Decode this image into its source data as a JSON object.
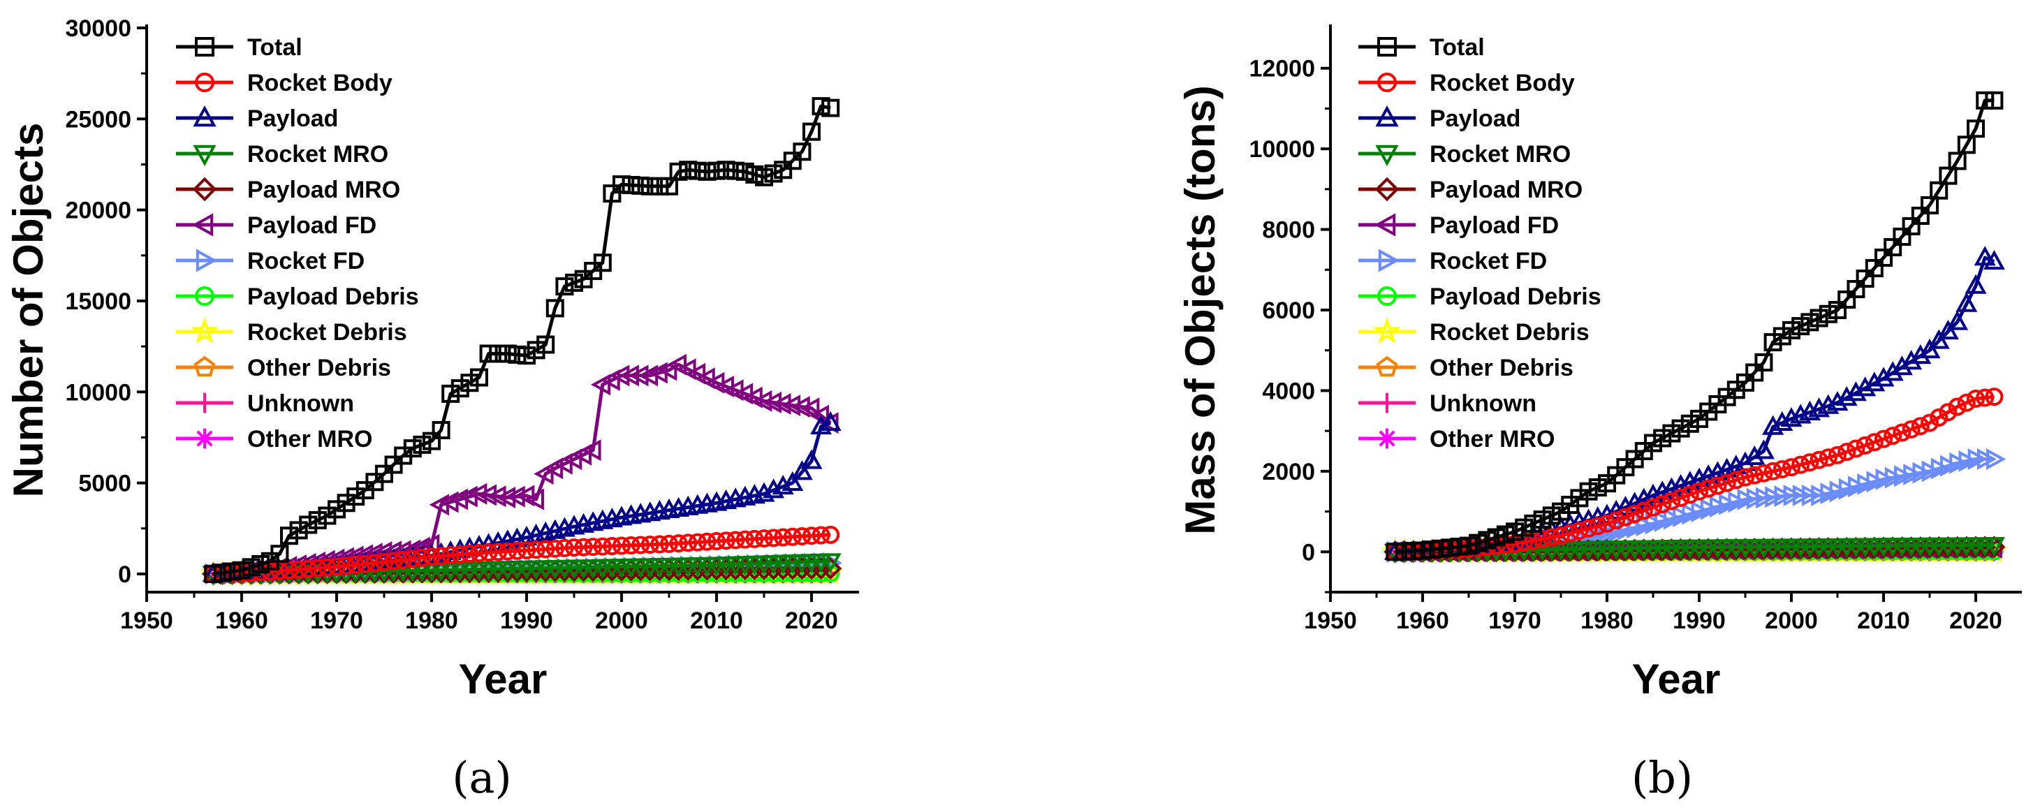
{
  "chart_data": [
    {
      "id": "a",
      "type": "line",
      "caption": "(a)",
      "xlabel": "Year",
      "ylabel": "Number of Objects",
      "xlim": [
        1950,
        2025
      ],
      "ylim": [
        -1000,
        30000
      ],
      "xticks": [
        "1950",
        "1960",
        "1970",
        "1980",
        "1990",
        "2000",
        "2010",
        "2020"
      ],
      "yticks": [
        "0",
        "5000",
        "10000",
        "15000",
        "20000",
        "25000",
        "30000"
      ],
      "legend_position": "top-left",
      "series": [
        {
          "name": "Total",
          "color": "#000000",
          "marker": "square",
          "x": [
            1957,
            1960,
            1963,
            1964,
            1965,
            1967,
            1969,
            1971,
            1973,
            1975,
            1976,
            1977,
            1978,
            1980,
            1981,
            1982,
            1983,
            1985,
            1986,
            1988,
            1990,
            1992,
            1993,
            1994,
            1996,
            1998,
            1999,
            2000,
            2003,
            2005,
            2006,
            2007,
            2009,
            2011,
            2013,
            2015,
            2017,
            2019,
            2020,
            2021,
            2022
          ],
          "values": [
            0,
            200,
            700,
            1100,
            2100,
            2700,
            3200,
            3900,
            4600,
            5500,
            6000,
            6500,
            6900,
            7300,
            7900,
            9900,
            10200,
            10800,
            12100,
            12100,
            12000,
            12600,
            14600,
            15800,
            16200,
            17100,
            20900,
            21400,
            21300,
            21300,
            22100,
            22200,
            22100,
            22200,
            22100,
            21800,
            22200,
            23200,
            24300,
            25700,
            25600
          ]
        },
        {
          "name": "Rocket Body",
          "color": "#ff0000",
          "marker": "circle",
          "x": [
            1957,
            1960,
            1965,
            1970,
            1975,
            1980,
            1985,
            1990,
            1995,
            2000,
            2005,
            2010,
            2015,
            2020,
            2022
          ],
          "values": [
            0,
            50,
            200,
            400,
            650,
            950,
            1150,
            1300,
            1450,
            1550,
            1650,
            1800,
            1950,
            2100,
            2150
          ]
        },
        {
          "name": "Payload",
          "color": "#00008b",
          "marker": "triangle-up",
          "x": [
            1957,
            1960,
            1965,
            1970,
            1975,
            1980,
            1985,
            1990,
            1995,
            2000,
            2005,
            2010,
            2015,
            2018,
            2020,
            2021,
            2022
          ],
          "values": [
            0,
            50,
            200,
            400,
            700,
            1000,
            1500,
            2000,
            2600,
            3100,
            3500,
            3900,
            4400,
            5000,
            6200,
            8100,
            8300
          ]
        },
        {
          "name": "Rocket MRO",
          "color": "#008000",
          "marker": "triangle-down",
          "x": [
            1957,
            1970,
            1980,
            1990,
            2000,
            2010,
            2022
          ],
          "values": [
            0,
            100,
            200,
            300,
            400,
            500,
            700
          ]
        },
        {
          "name": "Payload MRO",
          "color": "#800000",
          "marker": "diamond",
          "x": [
            1957,
            1970,
            1980,
            1990,
            2000,
            2010,
            2022
          ],
          "values": [
            0,
            50,
            100,
            150,
            200,
            250,
            300
          ]
        },
        {
          "name": "Payload FD",
          "color": "#800080",
          "marker": "triangle-left",
          "x": [
            1957,
            1960,
            1965,
            1970,
            1975,
            1978,
            1980,
            1981,
            1985,
            1988,
            1990,
            1991,
            1992,
            1993,
            1995,
            1997,
            1998,
            2000,
            2003,
            2005,
            2006,
            2010,
            2015,
            2020,
            2022
          ],
          "values": [
            0,
            100,
            400,
            800,
            1200,
            1300,
            1600,
            3800,
            4400,
            4200,
            4300,
            4100,
            5500,
            5800,
            6300,
            6800,
            10400,
            10900,
            10900,
            11200,
            11500,
            10500,
            9500,
            9100,
            8300
          ]
        },
        {
          "name": "Rocket FD",
          "color": "#6b8cff",
          "marker": "triangle-right",
          "x": [
            1957,
            1970,
            1980,
            1990,
            2000,
            2010,
            2022
          ],
          "values": [
            0,
            80,
            150,
            250,
            350,
            450,
            600
          ]
        },
        {
          "name": "Payload Debris",
          "color": "#00ff00",
          "marker": "circle",
          "x": [
            1957,
            1980,
            2000,
            2022
          ],
          "values": [
            0,
            20,
            30,
            40
          ]
        },
        {
          "name": "Rocket Debris",
          "color": "#ffff00",
          "marker": "star",
          "x": [
            1957,
            1980,
            2000,
            2022
          ],
          "values": [
            0,
            15,
            25,
            35
          ]
        },
        {
          "name": "Other Debris",
          "color": "#ff8000",
          "marker": "pentagon",
          "x": [
            1957,
            1980,
            2000,
            2022
          ],
          "values": [
            0,
            10,
            20,
            30
          ]
        },
        {
          "name": "Unknown",
          "color": "#ff1493",
          "marker": "plus",
          "x": [
            1957,
            1980,
            2000,
            2022
          ],
          "values": [
            0,
            5,
            10,
            15
          ]
        },
        {
          "name": "Other MRO",
          "color": "#ff00ff",
          "marker": "asterisk",
          "x": [
            1957,
            1980,
            2000,
            2022
          ],
          "values": [
            0,
            0,
            0,
            0
          ]
        }
      ]
    },
    {
      "id": "b",
      "type": "line",
      "caption": "(b)",
      "xlabel": "Year",
      "ylabel": "Mass of Objects (tons)",
      "xlim": [
        1950,
        2025
      ],
      "ylim": [
        -1000,
        13000
      ],
      "xticks": [
        "1950",
        "1960",
        "1970",
        "1980",
        "1990",
        "2000",
        "2010",
        "2020"
      ],
      "yticks": [
        "0",
        "2000",
        "4000",
        "6000",
        "8000",
        "10000",
        "12000"
      ],
      "legend_position": "top-left",
      "series": [
        {
          "name": "Total",
          "color": "#000000",
          "marker": "square",
          "x": [
            1957,
            1960,
            1965,
            1970,
            1975,
            1978,
            1980,
            1985,
            1990,
            1995,
            1997,
            1998,
            2000,
            2005,
            2010,
            2015,
            2018,
            2020,
            2021,
            2022
          ],
          "values": [
            0,
            30,
            150,
            500,
            1000,
            1500,
            1700,
            2700,
            3300,
            4200,
            4700,
            5200,
            5500,
            6000,
            7300,
            8600,
            9700,
            10500,
            11200,
            11200
          ]
        },
        {
          "name": "Rocket Body",
          "color": "#ff0000",
          "marker": "circle",
          "x": [
            1957,
            1960,
            1965,
            1970,
            1975,
            1980,
            1985,
            1990,
            1995,
            2000,
            2005,
            2010,
            2015,
            2018,
            2020,
            2022
          ],
          "values": [
            0,
            20,
            80,
            200,
            400,
            700,
            1100,
            1500,
            1850,
            2100,
            2400,
            2800,
            3200,
            3600,
            3800,
            3850
          ]
        },
        {
          "name": "Payload",
          "color": "#00008b",
          "marker": "triangle-up",
          "x": [
            1957,
            1960,
            1965,
            1970,
            1975,
            1980,
            1985,
            1990,
            1995,
            1997,
            1998,
            2000,
            2005,
            2010,
            2015,
            2018,
            2020,
            2021,
            2022
          ],
          "values": [
            0,
            10,
            80,
            250,
            600,
            900,
            1400,
            1800,
            2200,
            2500,
            3100,
            3300,
            3700,
            4300,
            5000,
            5700,
            6600,
            7300,
            7200
          ]
        },
        {
          "name": "Rocket MRO",
          "color": "#008000",
          "marker": "triangle-down",
          "x": [
            1957,
            1970,
            1980,
            1990,
            2000,
            2010,
            2022
          ],
          "values": [
            0,
            40,
            80,
            110,
            130,
            150,
            170
          ]
        },
        {
          "name": "Payload MRO",
          "color": "#800000",
          "marker": "diamond",
          "x": [
            1957,
            1970,
            1980,
            1990,
            2000,
            2010,
            2022
          ],
          "values": [
            0,
            20,
            40,
            60,
            80,
            100,
            120
          ]
        },
        {
          "name": "Payload FD",
          "color": "#800080",
          "marker": "triangle-left",
          "x": [
            1957,
            1970,
            1980,
            1990,
            2000,
            2010,
            2022
          ],
          "values": [
            0,
            10,
            30,
            50,
            70,
            80,
            100
          ]
        },
        {
          "name": "Rocket FD",
          "color": "#6b8cff",
          "marker": "triangle-right",
          "x": [
            1957,
            1960,
            1965,
            1970,
            1975,
            1980,
            1985,
            1990,
            1995,
            2000,
            2003,
            2005,
            2010,
            2015,
            2018,
            2020,
            2022
          ],
          "values": [
            0,
            10,
            60,
            150,
            250,
            450,
            700,
            1000,
            1300,
            1400,
            1400,
            1500,
            1800,
            2000,
            2200,
            2300,
            2300
          ]
        },
        {
          "name": "Payload Debris",
          "color": "#00ff00",
          "marker": "circle",
          "x": [
            1957,
            1990,
            2022
          ],
          "values": [
            0,
            10,
            15
          ]
        },
        {
          "name": "Rocket Debris",
          "color": "#ffff00",
          "marker": "star",
          "x": [
            1957,
            1990,
            2022
          ],
          "values": [
            0,
            8,
            12
          ]
        },
        {
          "name": "Other Debris",
          "color": "#ff8000",
          "marker": "pentagon",
          "x": [
            1957,
            1990,
            2022
          ],
          "values": [
            0,
            5,
            8
          ]
        },
        {
          "name": "Unknown",
          "color": "#ff1493",
          "marker": "plus",
          "x": [
            1957,
            1990,
            2022
          ],
          "values": [
            0,
            3,
            5
          ]
        },
        {
          "name": "Other MRO",
          "color": "#ff00ff",
          "marker": "asterisk",
          "x": [
            1957,
            1990,
            2022
          ],
          "values": [
            0,
            0,
            0
          ]
        }
      ]
    }
  ]
}
